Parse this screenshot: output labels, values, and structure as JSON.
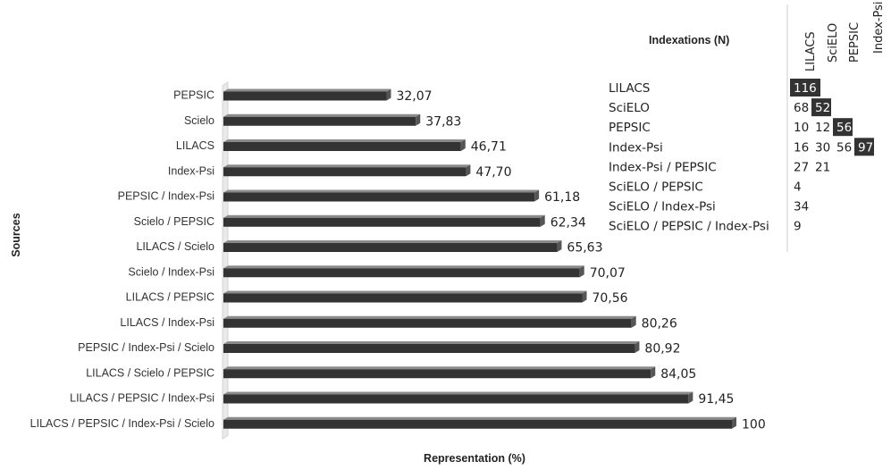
{
  "chart_data": [
    {
      "type": "bar",
      "orientation": "horizontal",
      "ylabel": "Sources",
      "xlabel": "Representation (%)",
      "categories": [
        "PEPSIC",
        "Scielo",
        "LILACS",
        "Index-Psi",
        "PEPSIC / Index-Psi",
        "Scielo / PEPSIC",
        "LILACS / Scielo",
        "Scielo / Index-Psi",
        "LILACS / PEPSIC",
        "LILACS / Index-Psi",
        "PEPSIC / Index-Psi / Scielo",
        "LILACS / Scielo / PEPSIC",
        "LILACS / PEPSIC / Index-Psi",
        "LILACS / PEPSIC / Index-Psi / Scielo"
      ],
      "values": [
        32.07,
        37.83,
        46.71,
        47.7,
        61.18,
        62.34,
        65.63,
        70.07,
        70.56,
        80.26,
        80.92,
        84.05,
        91.45,
        100
      ],
      "value_labels": [
        "32,07",
        "37,83",
        "46,71",
        "47,70",
        "61,18",
        "62,34",
        "65,63",
        "70,07",
        "70,56",
        "80,26",
        "80,92",
        "84,05",
        "91,45",
        "100"
      ],
      "xlim": [
        0,
        100
      ],
      "grid": false,
      "bar_color": "#333333"
    },
    {
      "type": "table",
      "title": "Indexations (N)",
      "columns": [
        "LILACS",
        "SciELO",
        "PEPSIC",
        "Index-Psi"
      ],
      "rows": [
        {
          "label": "LILACS",
          "cells": [
            "116",
            "",
            "",
            ""
          ]
        },
        {
          "label": "SciELO",
          "cells": [
            "68",
            "52",
            "",
            ""
          ]
        },
        {
          "label": "PEPSIC",
          "cells": [
            "10",
            "12",
            "56",
            ""
          ]
        },
        {
          "label": "Index-Psi",
          "cells": [
            "16",
            "30",
            "56",
            "97"
          ]
        },
        {
          "label": "Index-Psi / PEPSIC",
          "cells": [
            "27",
            "21",
            "",
            ""
          ]
        },
        {
          "label": "SciELO / PEPSIC",
          "cells": [
            "4",
            "",
            "",
            ""
          ]
        },
        {
          "label": "SciELO / Index-Psi",
          "cells": [
            "34",
            "",
            "",
            ""
          ]
        },
        {
          "label": "SciELO / PEPSIC / Index-Psi",
          "cells": [
            "9",
            "",
            "",
            ""
          ]
        }
      ],
      "highlighted_cells": [
        [
          0,
          0
        ],
        [
          1,
          1
        ],
        [
          2,
          2
        ],
        [
          3,
          3
        ]
      ],
      "highlight_color": "#333333"
    }
  ]
}
